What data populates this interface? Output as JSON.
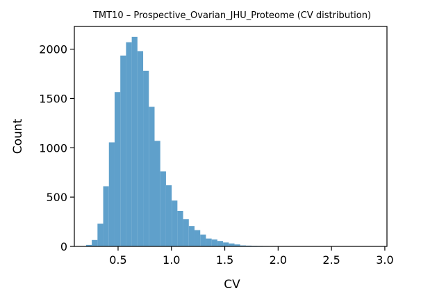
{
  "chart_data": {
    "type": "bar",
    "title": "TMT10 – Prospective_Ovarian_JHU_Proteome (CV distribution)",
    "xlabel": "CV",
    "ylabel": "Count",
    "xlim": [
      0.09,
      3.02
    ],
    "ylim": [
      0,
      2230
    ],
    "xticks": [
      0.5,
      1.0,
      1.5,
      2.0,
      2.5,
      3.0
    ],
    "xtick_labels": [
      "0.5",
      "1.0",
      "1.5",
      "2.0",
      "2.5",
      "3.0"
    ],
    "yticks": [
      0,
      500,
      1000,
      1500,
      2000
    ],
    "ytick_labels": [
      "0",
      "500",
      "1000",
      "1500",
      "2000"
    ],
    "bin_start": 0.2,
    "bin_width": 0.0535,
    "values": [
      15,
      65,
      230,
      610,
      1055,
      1565,
      1935,
      2070,
      2125,
      1980,
      1780,
      1415,
      1070,
      760,
      620,
      465,
      360,
      275,
      205,
      165,
      120,
      80,
      70,
      55,
      40,
      30,
      20,
      10,
      8,
      6,
      5,
      4,
      3,
      3,
      2,
      2,
      2,
      1,
      1,
      1,
      1,
      1,
      1,
      1,
      1,
      1,
      1,
      1,
      1,
      1
    ],
    "bar_color": "#5fa0cb",
    "grid": false,
    "legend": "none"
  }
}
